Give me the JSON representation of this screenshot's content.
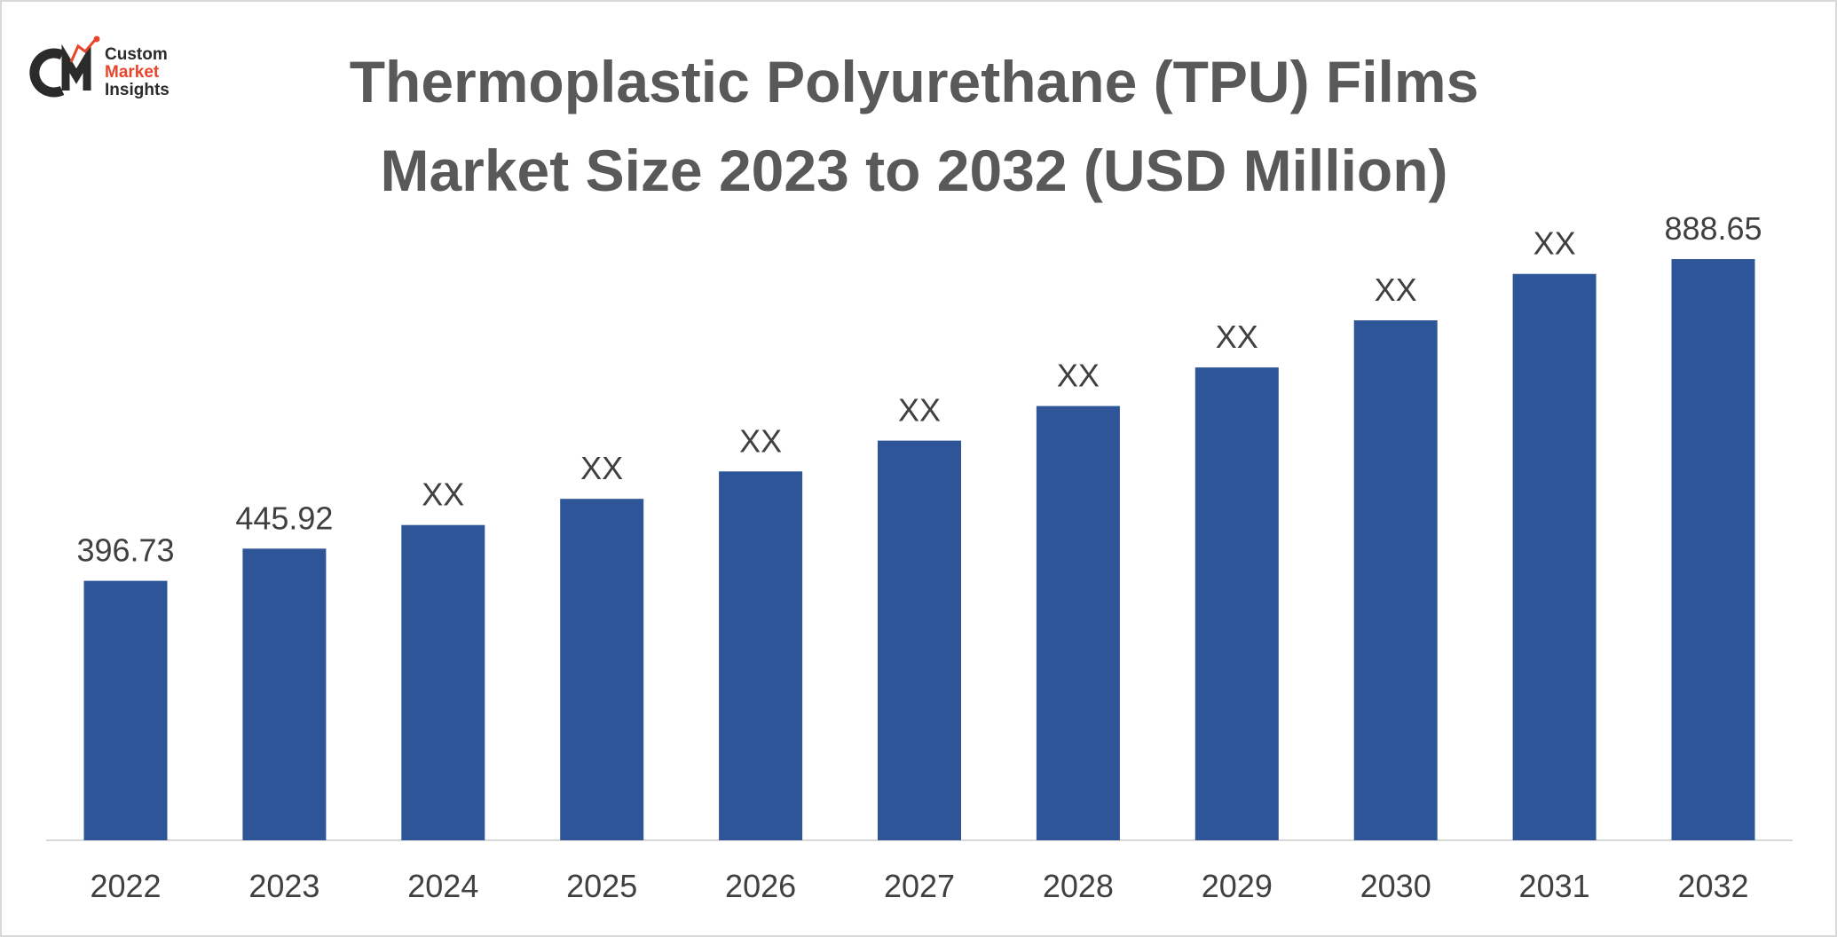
{
  "logo": {
    "line1": "Custom",
    "line2": "Market",
    "line3": "Insights"
  },
  "colors": {
    "bar": "#2e5597",
    "axis": "#d9d9d9",
    "text": "#404040",
    "title": "#595959",
    "logo_accent": "#e8452c"
  },
  "chart_data": {
    "type": "bar",
    "title": "Thermoplastic Polyurethane (TPU) Films Market Size 2023 to 2032 (USD Million)",
    "title_lines": [
      "Thermoplastic Polyurethane (TPU) Films",
      "Market Size 2023 to 2032 (USD Million)"
    ],
    "categories": [
      "2022",
      "2023",
      "2024",
      "2025",
      "2026",
      "2027",
      "2028",
      "2029",
      "2030",
      "2031",
      "2032"
    ],
    "values": [
      396.73,
      445.92,
      482,
      522,
      564,
      611,
      664,
      723,
      795,
      866,
      888.65
    ],
    "data_labels": [
      "396.73",
      "445.92",
      "XX",
      "XX",
      "XX",
      "XX",
      "XX",
      "XX",
      "XX",
      "XX",
      "888.65"
    ],
    "xlabel": "",
    "ylabel": "",
    "ylim": [
      0,
      900
    ],
    "grid": false,
    "legend": "none"
  }
}
